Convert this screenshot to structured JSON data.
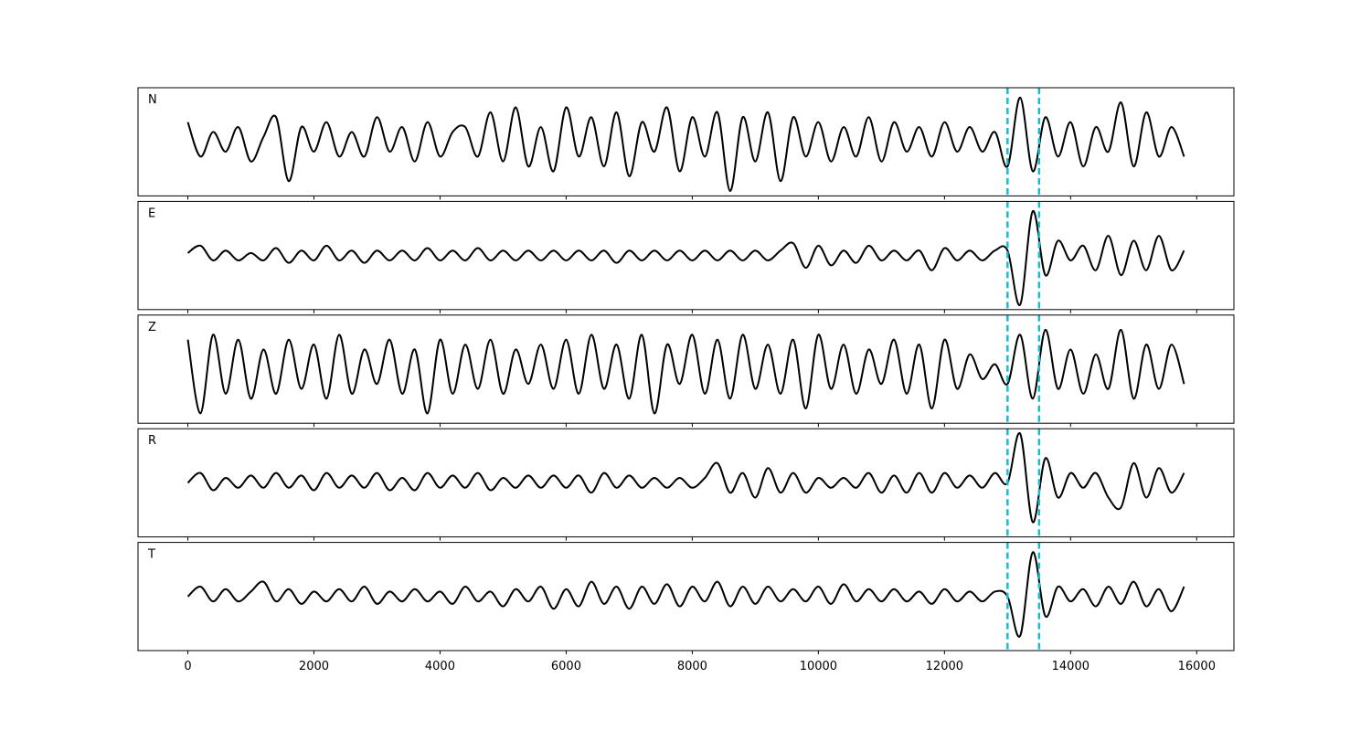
{
  "chart_data": {
    "type": "line",
    "x": [
      0,
      200,
      400,
      600,
      800,
      1000,
      1200,
      1400,
      1600,
      1800,
      2000,
      2200,
      2400,
      2600,
      2800,
      3000,
      3200,
      3400,
      3600,
      3800,
      4000,
      4200,
      4400,
      4600,
      4800,
      5000,
      5200,
      5400,
      5600,
      5800,
      6000,
      6200,
      6400,
      6600,
      6800,
      7000,
      7200,
      7400,
      7600,
      7800,
      8000,
      8200,
      8400,
      8600,
      8800,
      9000,
      9200,
      9400,
      9600,
      9800,
      10000,
      10200,
      10400,
      10600,
      10800,
      11000,
      11200,
      11400,
      11600,
      11800,
      12000,
      12200,
      12400,
      12600,
      12800,
      13000,
      13200,
      13400,
      13600,
      13800,
      14000,
      14200,
      14400,
      14600,
      14800,
      15000,
      15200,
      15400,
      15600,
      15800
    ],
    "xlim": [
      -790,
      16590
    ],
    "xticks": [
      0,
      2000,
      4000,
      6000,
      8000,
      10000,
      12000,
      14000,
      16000
    ],
    "vlines": [
      13000,
      13500
    ],
    "vline_color": "#17becf",
    "series": [
      {
        "name": "N",
        "color": "#000000",
        "ylim": [
          -1.1,
          1.1
        ],
        "values": [
          0.4,
          -0.3,
          0.2,
          -0.2,
          0.3,
          -0.4,
          0.1,
          0.5,
          -0.8,
          0.3,
          -0.2,
          0.4,
          -0.3,
          0.2,
          -0.3,
          0.5,
          -0.2,
          0.3,
          -0.4,
          0.4,
          -0.3,
          0.2,
          0.3,
          -0.3,
          0.6,
          -0.4,
          0.7,
          -0.5,
          0.3,
          -0.6,
          0.7,
          -0.3,
          0.5,
          -0.5,
          0.6,
          -0.7,
          0.4,
          -0.2,
          0.7,
          -0.6,
          0.5,
          -0.3,
          0.6,
          -1.0,
          0.5,
          -0.4,
          0.6,
          -0.8,
          0.5,
          -0.3,
          0.4,
          -0.4,
          0.3,
          -0.3,
          0.5,
          -0.4,
          0.4,
          -0.2,
          0.3,
          -0.3,
          0.4,
          -0.2,
          0.3,
          -0.2,
          0.2,
          -0.5,
          0.9,
          -0.6,
          0.5,
          -0.3,
          0.4,
          -0.5,
          0.3,
          -0.2,
          0.8,
          -0.5,
          0.6,
          -0.3,
          0.3,
          -0.3
        ]
      },
      {
        "name": "E",
        "color": "#000000",
        "ylim": [
          -1.1,
          1.1
        ],
        "values": [
          0.05,
          0.2,
          -0.1,
          0.1,
          -0.1,
          0.05,
          -0.1,
          0.15,
          -0.15,
          0.1,
          -0.1,
          0.2,
          -0.1,
          0.1,
          -0.15,
          0.1,
          -0.1,
          0.1,
          -0.1,
          0.15,
          -0.1,
          0.1,
          -0.1,
          0.15,
          -0.1,
          0.1,
          -0.1,
          0.1,
          -0.1,
          0.1,
          -0.1,
          0.1,
          -0.1,
          0.1,
          -0.15,
          0.1,
          -0.1,
          0.1,
          -0.1,
          0.1,
          -0.1,
          0.1,
          -0.1,
          0.1,
          -0.1,
          0.1,
          -0.1,
          0.1,
          0.25,
          -0.25,
          0.2,
          -0.2,
          0.1,
          -0.15,
          0.2,
          -0.1,
          0.1,
          -0.1,
          0.1,
          -0.3,
          0.15,
          -0.1,
          0.1,
          -0.1,
          0.1,
          0.1,
          -1.0,
          0.9,
          -0.4,
          0.3,
          -0.1,
          0.2,
          -0.3,
          0.4,
          -0.4,
          0.3,
          -0.3,
          0.4,
          -0.3,
          0.1
        ]
      },
      {
        "name": "Z",
        "color": "#000000",
        "ylim": [
          -1.1,
          1.1
        ],
        "values": [
          0.6,
          -0.9,
          0.7,
          -0.5,
          0.6,
          -0.6,
          0.4,
          -0.5,
          0.6,
          -0.4,
          0.5,
          -0.6,
          0.7,
          -0.5,
          0.4,
          -0.3,
          0.6,
          -0.5,
          0.4,
          -0.9,
          0.6,
          -0.5,
          0.5,
          -0.4,
          0.6,
          -0.5,
          0.4,
          -0.3,
          0.5,
          -0.4,
          0.6,
          -0.5,
          0.7,
          -0.4,
          0.5,
          -0.6,
          0.7,
          -0.9,
          0.5,
          -0.3,
          0.7,
          -0.5,
          0.6,
          -0.6,
          0.7,
          -0.4,
          0.5,
          -0.5,
          0.6,
          -0.8,
          0.7,
          -0.4,
          0.5,
          -0.5,
          0.4,
          -0.3,
          0.6,
          -0.5,
          0.5,
          -0.8,
          0.6,
          -0.4,
          0.3,
          -0.2,
          0.1,
          -0.3,
          0.7,
          -0.6,
          0.8,
          -0.4,
          0.4,
          -0.5,
          0.3,
          -0.4,
          0.8,
          -0.6,
          0.5,
          -0.4,
          0.5,
          -0.3
        ]
      },
      {
        "name": "R",
        "color": "#000000",
        "ylim": [
          -1.1,
          1.1
        ],
        "values": [
          0.0,
          0.2,
          -0.15,
          0.1,
          -0.1,
          0.15,
          -0.1,
          0.2,
          -0.1,
          0.15,
          -0.15,
          0.2,
          -0.1,
          0.15,
          -0.1,
          0.2,
          -0.15,
          0.1,
          -0.15,
          0.2,
          -0.1,
          0.15,
          -0.1,
          0.2,
          -0.15,
          0.1,
          -0.1,
          0.15,
          -0.1,
          0.15,
          -0.1,
          0.15,
          -0.2,
          0.2,
          -0.1,
          0.15,
          -0.1,
          0.1,
          -0.1,
          0.1,
          -0.1,
          0.1,
          0.4,
          -0.2,
          0.2,
          -0.3,
          0.3,
          -0.2,
          0.2,
          -0.2,
          0.1,
          -0.1,
          0.1,
          -0.1,
          0.2,
          -0.2,
          0.15,
          -0.2,
          0.2,
          -0.2,
          0.2,
          -0.1,
          0.15,
          -0.1,
          0.2,
          0.0,
          1.0,
          -0.8,
          0.5,
          -0.3,
          0.2,
          -0.1,
          0.2,
          -0.3,
          -0.5,
          0.4,
          -0.3,
          0.3,
          -0.2,
          0.2
        ]
      },
      {
        "name": "T",
        "color": "#000000",
        "ylim": [
          -1.1,
          1.1
        ],
        "values": [
          0.0,
          0.2,
          -0.1,
          0.15,
          -0.1,
          0.1,
          0.3,
          -0.1,
          0.15,
          -0.15,
          0.1,
          -0.1,
          0.15,
          -0.1,
          0.2,
          -0.15,
          0.1,
          -0.1,
          0.15,
          -0.1,
          0.1,
          -0.15,
          0.2,
          -0.1,
          0.1,
          -0.2,
          0.15,
          -0.1,
          0.2,
          -0.25,
          0.15,
          -0.2,
          0.3,
          -0.15,
          0.2,
          -0.25,
          0.2,
          -0.15,
          0.25,
          -0.2,
          0.2,
          -0.1,
          0.3,
          -0.2,
          0.2,
          -0.15,
          0.2,
          -0.1,
          0.15,
          -0.1,
          0.2,
          -0.15,
          0.25,
          -0.1,
          0.15,
          -0.1,
          0.15,
          -0.1,
          0.1,
          -0.15,
          0.15,
          -0.1,
          0.1,
          -0.1,
          0.1,
          0.0,
          -0.8,
          0.9,
          -0.4,
          0.2,
          -0.1,
          0.15,
          -0.2,
          0.2,
          -0.15,
          0.3,
          -0.2,
          0.15,
          -0.3,
          0.2
        ]
      }
    ]
  }
}
